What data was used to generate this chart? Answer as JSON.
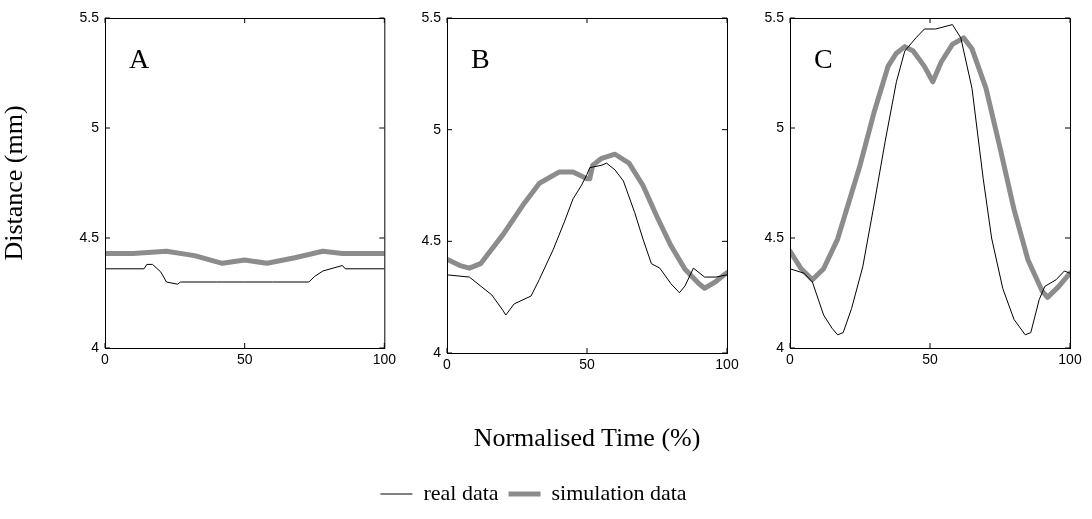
{
  "chart_data": [
    {
      "type": "line",
      "title": "A",
      "ylabel": "Distance (mm)",
      "xlim": [
        0,
        100
      ],
      "xticks": [
        0,
        50,
        100
      ],
      "ylim": [
        4,
        5.5
      ],
      "yticks": [
        4,
        4.5,
        5,
        5.5
      ],
      "grid": false,
      "legend": false,
      "marker": "none",
      "series": [
        {
          "color": "#000000",
          "x": [
            0,
            14,
            15,
            17,
            20,
            22,
            26,
            27,
            40,
            50,
            60,
            73,
            75,
            78,
            85,
            86,
            100
          ],
          "values": [
            4.36,
            4.36,
            4.38,
            4.38,
            4.345,
            4.3,
            4.29,
            4.3,
            4.3,
            4.3,
            4.3,
            4.3,
            4.325,
            4.35,
            4.375,
            4.36,
            4.36
          ]
        },
        {
          "color": "#8c8c8c",
          "x": [
            0,
            10,
            22,
            32,
            42,
            50,
            58,
            68,
            78,
            85,
            100
          ],
          "values": [
            4.43,
            4.43,
            4.44,
            4.42,
            4.385,
            4.4,
            4.385,
            4.41,
            4.44,
            4.43,
            4.43
          ]
        }
      ]
    },
    {
      "type": "line",
      "title": "B",
      "xlabel": "Normalised Time (%)",
      "xlim": [
        0,
        100
      ],
      "xticks": [
        0,
        50,
        100
      ],
      "ylim": [
        4,
        5.5
      ],
      "yticks": [
        4,
        4.5,
        5,
        5.5
      ],
      "grid": false,
      "legend": "bottom",
      "marker": "none",
      "series": [
        {
          "name": "real data",
          "color": "#000000",
          "x": [
            0,
            8,
            12,
            16,
            20,
            21,
            24,
            30,
            33,
            38,
            42,
            45,
            48,
            50,
            51,
            55,
            57,
            60,
            63,
            67,
            70,
            73,
            76,
            80,
            83,
            85,
            88,
            92,
            96,
            100
          ],
          "values": [
            4.35,
            4.34,
            4.3,
            4.26,
            4.19,
            4.17,
            4.22,
            4.255,
            4.33,
            4.465,
            4.59,
            4.69,
            4.75,
            4.8,
            4.83,
            4.84,
            4.85,
            4.82,
            4.77,
            4.63,
            4.51,
            4.4,
            4.38,
            4.31,
            4.27,
            4.3,
            4.38,
            4.34,
            4.34,
            4.35
          ]
        },
        {
          "name": "simulation data",
          "color": "#8c8c8c",
          "x": [
            0,
            5,
            8,
            12,
            20,
            27,
            33,
            40,
            45,
            50,
            51,
            52,
            55,
            60,
            65,
            70,
            75,
            80,
            85,
            90,
            92,
            96,
            100
          ],
          "values": [
            4.42,
            4.39,
            4.38,
            4.4,
            4.53,
            4.66,
            4.76,
            4.81,
            4.81,
            4.78,
            4.78,
            4.84,
            4.87,
            4.89,
            4.85,
            4.75,
            4.61,
            4.48,
            4.375,
            4.31,
            4.29,
            4.32,
            4.36
          ]
        }
      ]
    },
    {
      "type": "line",
      "title": "C",
      "xlim": [
        0,
        100
      ],
      "xticks": [
        0,
        50,
        100
      ],
      "ylim": [
        4,
        5.5
      ],
      "yticks": [
        4,
        4.5,
        5,
        5.5
      ],
      "grid": false,
      "legend": false,
      "marker": "none",
      "series": [
        {
          "color": "#000000",
          "x": [
            0,
            5,
            8,
            12,
            15,
            17,
            19,
            22,
            26,
            30,
            34,
            38,
            41,
            45,
            48,
            52,
            55,
            58,
            61,
            65,
            69,
            72,
            76,
            80,
            84,
            86,
            89,
            91,
            95,
            98,
            100
          ],
          "values": [
            4.36,
            4.34,
            4.3,
            4.15,
            4.09,
            4.06,
            4.07,
            4.18,
            4.37,
            4.65,
            4.94,
            5.21,
            5.35,
            5.41,
            5.45,
            5.45,
            5.46,
            5.47,
            5.41,
            5.18,
            4.77,
            4.5,
            4.27,
            4.13,
            4.06,
            4.07,
            4.22,
            4.28,
            4.31,
            4.35,
            4.34
          ]
        },
        {
          "color": "#8c8c8c",
          "x": [
            0,
            4,
            8,
            12,
            17,
            20,
            25,
            30,
            35,
            38,
            41,
            44,
            48,
            51,
            54,
            58,
            62,
            65,
            70,
            75,
            80,
            85,
            90,
            92,
            96,
            100
          ],
          "values": [
            4.44,
            4.36,
            4.31,
            4.36,
            4.495,
            4.62,
            4.83,
            5.07,
            5.28,
            5.34,
            5.37,
            5.35,
            5.28,
            5.21,
            5.3,
            5.38,
            5.41,
            5.36,
            5.18,
            4.91,
            4.63,
            4.4,
            4.26,
            4.23,
            4.28,
            4.34
          ]
        }
      ]
    }
  ]
}
